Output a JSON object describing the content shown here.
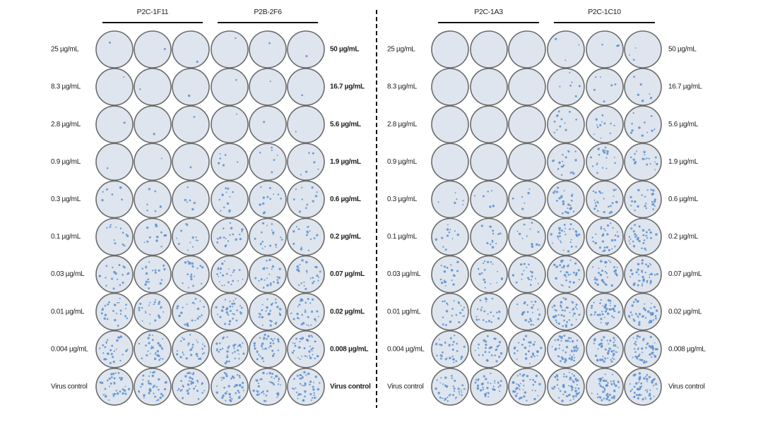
{
  "panels": [
    {
      "groups": [
        "P2C-1F11",
        "P2B-2F6"
      ],
      "left_labels": [
        "25 µg/mL",
        "8.3 µg/mL",
        "2.8 µg/mL",
        "0.9 µg/mL",
        "0.3 µg/mL",
        "0.1 µg/mL",
        "0.03 µg/mL",
        "0.01 µg/mL",
        "0.004 µg/mL",
        "Virus control"
      ],
      "right_labels": [
        "50 µg/mL",
        "16.7 µg/mL",
        "5.6 µg/mL",
        "1.9 µg/mL",
        "0.6 µg/mL",
        "0.2 µg/mL",
        "0.07 µg/mL",
        "0.02 µg/mL",
        "0.008 µg/mL",
        "Virus control"
      ]
    },
    {
      "groups": [
        "P2C-1A3",
        "P2C-1C10"
      ],
      "left_labels": [
        "25 µg/mL",
        "8.3 µg/mL",
        "2.8 µg/mL",
        "0.9 µg/mL",
        "0.3 µg/mL",
        "0.1 µg/mL",
        "0.03 µg/mL",
        "0.01 µg/mL",
        "0.004 µg/mL",
        "Virus control"
      ],
      "right_labels": [
        "50 µg/mL",
        "16.7 µg/mL",
        "5.6 µg/mL",
        "1.9 µg/mL",
        "0.6 µg/mL",
        "0.2 µg/mL",
        "0.07 µg/mL",
        "0.02 µg/mL",
        "0.008 µg/mL",
        "Virus control"
      ]
    }
  ]
}
